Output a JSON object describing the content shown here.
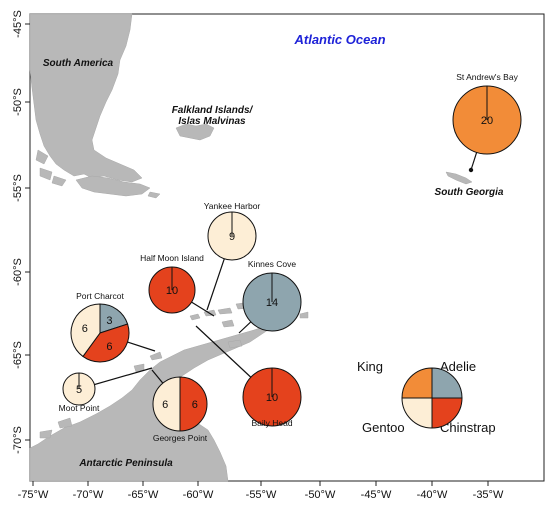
{
  "map": {
    "ocean_label": "Atlantic Ocean",
    "landmasses": [
      "South America",
      "Falkland Islands/",
      "Islas Malvinas",
      "South Georgia",
      "Antarctic Peninsula"
    ],
    "x_ticks": [
      "-75°W",
      "-70°W",
      "-65°W",
      "-60°W",
      "-55°W",
      "-50°W",
      "-45°W",
      "-40°W",
      "-35°W"
    ],
    "y_ticks": [
      "-45°S",
      "-50°S",
      "-55°S",
      "-60°S",
      "-65°S",
      "-70°S"
    ],
    "colors": {
      "land": "#b8b8b8",
      "king": "#f28c38",
      "adelie": "#8ea5ae",
      "gentoo": "#fdeed6",
      "chinstrap": "#e4421d"
    }
  },
  "colonies": [
    {
      "name": "St Andrew's Bay",
      "counts": [
        {
          "species": "king",
          "value": 20
        }
      ]
    },
    {
      "name": "Yankee Harbor",
      "counts": [
        {
          "species": "gentoo",
          "value": 9
        }
      ]
    },
    {
      "name": "Half Moon Island",
      "counts": [
        {
          "species": "chinstrap",
          "value": 10
        }
      ]
    },
    {
      "name": "Kinnes Cove",
      "counts": [
        {
          "species": "adelie",
          "value": 14
        }
      ]
    },
    {
      "name": "Port Charcot",
      "counts": [
        {
          "species": "adelie",
          "value": 3
        },
        {
          "species": "chinstrap",
          "value": 6
        },
        {
          "species": "gentoo",
          "value": 6
        }
      ]
    },
    {
      "name": "Moot Point",
      "counts": [
        {
          "species": "gentoo",
          "value": 5
        }
      ]
    },
    {
      "name": "Georges Point",
      "counts": [
        {
          "species": "chinstrap",
          "value": 6
        },
        {
          "species": "gentoo",
          "value": 6
        }
      ]
    },
    {
      "name": "Baily Head",
      "counts": [
        {
          "species": "chinstrap",
          "value": 10
        }
      ]
    }
  ],
  "legend": {
    "king": "King",
    "adelie": "Adelie",
    "gentoo": "Gentoo",
    "chinstrap": "Chinstrap"
  }
}
